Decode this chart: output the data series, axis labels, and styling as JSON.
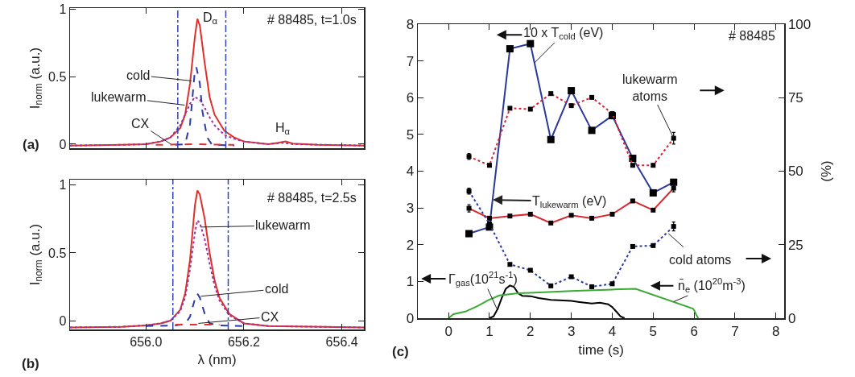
{
  "chart_data": [
    {
      "type": "line",
      "ylabel": "I$_{norm}$ (a.u.)",
      "xlim": [
        655.845,
        656.445
      ],
      "ylim": [
        -0.03,
        1.01
      ],
      "xticks": [
        656,
        656.2,
        656.4
      ],
      "yticks": [
        0,
        0.5,
        1
      ],
      "tick_labels": "y",
      "series": [
        {
          "color": "#e0302a",
          "line_style": "solid",
          "x": [
            655.845,
            655.95,
            656.0,
            656.03,
            656.05,
            656.07,
            656.08,
            656.09,
            656.1,
            656.105,
            656.11,
            656.12,
            656.13,
            656.14,
            656.16,
            656.18,
            656.2,
            656.25,
            656.27,
            656.285,
            656.3,
            656.35,
            656.445
          ],
          "values": [
            -0.01,
            -0.005,
            0.0,
            0.02,
            0.05,
            0.12,
            0.22,
            0.45,
            0.8,
            0.93,
            0.88,
            0.6,
            0.35,
            0.22,
            0.1,
            0.05,
            0.02,
            0.0,
            0.01,
            0.02,
            0.005,
            -0.005,
            -0.01
          ]
        },
        {
          "color": "#2a3aa8",
          "line_style": "dashed",
          "x": [
            656.06,
            656.08,
            656.09,
            656.095,
            656.1,
            656.103,
            656.11,
            656.115,
            656.125,
            656.135,
            656.18
          ],
          "values": [
            -0.005,
            0.0,
            0.15,
            0.35,
            0.55,
            0.57,
            0.45,
            0.25,
            0.05,
            -0.005,
            -0.01
          ]
        },
        {
          "color": "#a030a0",
          "line_style": "dotted",
          "x": [
            655.845,
            655.95,
            656.0,
            656.03,
            656.05,
            656.07,
            656.08,
            656.09,
            656.1,
            656.11,
            656.12,
            656.13,
            656.14,
            656.16,
            656.18,
            656.2,
            656.25,
            656.28,
            656.3,
            656.445
          ],
          "values": [
            -0.01,
            -0.005,
            0.0,
            0.02,
            0.05,
            0.14,
            0.22,
            0.3,
            0.35,
            0.33,
            0.27,
            0.2,
            0.14,
            0.07,
            0.04,
            0.02,
            0.0,
            0.01,
            0.0,
            -0.01
          ]
        },
        {
          "color": "#e0302a",
          "line_style": "dashed",
          "x": [
            656.02,
            656.1,
            656.18
          ],
          "values": [
            -0.005,
            0.0,
            -0.005
          ]
        }
      ],
      "ref_lines": [
        {
          "axis": "x",
          "value": 656.065,
          "color": "#3344bb",
          "line_style": "dashed"
        },
        {
          "axis": "x",
          "value": 656.163,
          "color": "#3344bb",
          "line_style": "dashed"
        }
      ],
      "annotations": [
        "D$_{α}$",
        "# 88485, t=1.0s",
        {
          "text": "cold",
          "x": 656.093,
          "y": 0.47
        },
        {
          "text": "lukewarm",
          "x": 656.079,
          "y": 0.29
        },
        {
          "text": "CX",
          "x": 656.051,
          "y": 0.0
        },
        "H$_{α}$",
        "(a)"
      ]
    },
    {
      "type": "line",
      "xlabel": "λ (nm)",
      "ylabel": "I$_{norm}$ (a.u.)",
      "xlim": [
        655.845,
        656.445
      ],
      "ylim": [
        -0.065,
        1.04
      ],
      "xticks": [
        {
          "value": 656.0,
          "label": "656.0"
        },
        {
          "value": 656.2,
          "label": "656.2"
        },
        {
          "value": 656.4,
          "label": "656.4"
        }
      ],
      "yticks": [
        0,
        0.5,
        1
      ],
      "series": [
        {
          "color": "#e0302a",
          "line_style": "solid",
          "x": [
            655.845,
            655.95,
            656.0,
            656.03,
            656.05,
            656.07,
            656.08,
            656.09,
            656.1,
            656.105,
            656.11,
            656.12,
            656.13,
            656.14,
            656.15,
            656.17,
            656.2,
            656.25,
            656.445
          ],
          "values": [
            -0.05,
            -0.045,
            -0.035,
            -0.02,
            0.0,
            0.08,
            0.2,
            0.45,
            0.85,
            0.96,
            0.93,
            0.75,
            0.5,
            0.3,
            0.17,
            0.05,
            -0.02,
            -0.04,
            -0.05
          ]
        },
        {
          "color": "#a030a0",
          "line_style": "dotted",
          "x": [
            655.845,
            655.95,
            656.0,
            656.03,
            656.05,
            656.07,
            656.08,
            656.09,
            656.1,
            656.105,
            656.11,
            656.12,
            656.13,
            656.14,
            656.15,
            656.17,
            656.2,
            656.25,
            656.445
          ],
          "values": [
            -0.05,
            -0.045,
            -0.035,
            -0.02,
            0.0,
            0.07,
            0.17,
            0.38,
            0.65,
            0.74,
            0.72,
            0.6,
            0.42,
            0.26,
            0.15,
            0.04,
            -0.02,
            -0.04,
            -0.05
          ]
        },
        {
          "color": "#2a3aa8",
          "line_style": "dashed",
          "x": [
            656.0,
            656.06,
            656.08,
            656.09,
            656.1,
            656.105,
            656.11,
            656.12,
            656.13,
            656.15,
            656.2
          ],
          "values": [
            -0.04,
            -0.035,
            -0.025,
            0.03,
            0.16,
            0.2,
            0.17,
            0.05,
            -0.02,
            -0.035,
            -0.04
          ]
        },
        {
          "color": "#e0302a",
          "line_style": "dashed",
          "x": [
            656.06,
            656.15
          ],
          "values": [
            -0.03,
            -0.03
          ]
        }
      ],
      "ref_lines": [
        {
          "axis": "x",
          "value": 656.055,
          "color": "#3344bb",
          "line_style": "dashed"
        },
        {
          "axis": "x",
          "value": 656.168,
          "color": "#3344bb",
          "line_style": "dashed"
        }
      ],
      "annotations": [
        "# 88485, t=2.5s",
        {
          "text": "lukewarm",
          "x": 656.112,
          "y": 0.69
        },
        {
          "text": "cold",
          "x": 656.112,
          "y": 0.18
        },
        {
          "text": "CX",
          "x": 656.107,
          "y": -0.02
        },
        "(b)"
      ]
    },
    {
      "type": "line",
      "xlabel": "time (s)",
      "y2label": "(%)",
      "xlim": [
        -0.75,
        8.2
      ],
      "ylim": [
        0,
        8
      ],
      "y2lim": [
        0,
        100
      ],
      "xticks": [
        0,
        1,
        2,
        3,
        4,
        5,
        6,
        7,
        8
      ],
      "yticks": [
        0,
        1,
        2,
        3,
        4,
        5,
        6,
        7,
        8
      ],
      "y2ticks": [
        0,
        25,
        50,
        75,
        100
      ],
      "marker": "square",
      "x": [
        0.5,
        1.0,
        1.5,
        2.0,
        2.5,
        3.0,
        3.5,
        4.0,
        4.5,
        5.0,
        5.5
      ],
      "series": [
        {
          "color": "#2b3a9a",
          "line_style": "solid",
          "values": [
            2.3,
            2.48,
            7.33,
            7.47,
            4.86,
            6.19,
            5.11,
            5.51,
            4.35,
            3.41,
            3.7
          ]
        },
        {
          "color": "#d8282d",
          "line_style": "solid",
          "values": [
            2.99,
            2.72,
            2.78,
            2.83,
            2.59,
            2.8,
            2.72,
            2.83,
            3.19,
            2.94,
            3.54
          ],
          "errors": [
            0.1,
            null,
            null,
            null,
            null,
            null,
            null,
            null,
            null,
            null,
            0.1
          ]
        },
        {
          "color": "#e02030",
          "line_style": "dotted",
          "axis": "y2",
          "values": [
            55.0,
            52.0,
            71.4,
            71.1,
            76.4,
            72.3,
            75.1,
            69.6,
            52.0,
            52.0,
            61.2
          ],
          "errors": [
            1,
            null,
            null,
            null,
            null,
            null,
            null,
            null,
            null,
            null,
            2
          ]
        },
        {
          "color": "#2b3a9a",
          "line_style": "dotted",
          "axis": "y2",
          "values": [
            43.2,
            32.1,
            18.3,
            16.3,
            11.0,
            14.1,
            10.7,
            11.7,
            24.4,
            24.7,
            31.2
          ],
          "errors": [
            1,
            null,
            null,
            null,
            null,
            null,
            null,
            null,
            null,
            null,
            1.5
          ]
        },
        {
          "color": "#000000",
          "line_style": "solid",
          "marker": "none",
          "x": [
            1.0,
            1.1,
            1.2,
            1.3,
            1.4,
            1.5,
            1.6,
            1.7,
            1.8,
            2.0,
            2.2,
            2.5,
            3.0,
            3.2,
            3.5,
            3.7,
            3.9,
            4.0,
            4.1,
            4.2,
            4.3
          ],
          "values": [
            0.0,
            0.05,
            0.25,
            0.55,
            0.8,
            0.89,
            0.85,
            0.68,
            0.61,
            0.6,
            0.55,
            0.5,
            0.47,
            0.44,
            0.4,
            0.42,
            0.38,
            0.3,
            0.18,
            0.05,
            0.0
          ]
        },
        {
          "color": "#3aaa35",
          "line_style": "solid",
          "marker": "none",
          "x": [
            0.0,
            0.12,
            0.41,
            0.71,
            0.97,
            1.24,
            1.7,
            2.0,
            3.0,
            4.0,
            4.57,
            5.97,
            6.0,
            6.05,
            6.1
          ],
          "values": [
            0.0,
            0.11,
            0.18,
            0.33,
            0.49,
            0.62,
            0.68,
            0.69,
            0.74,
            0.78,
            0.8,
            0.26,
            0.22,
            0.1,
            0.0
          ]
        }
      ],
      "annotations": [
        {
          "text": "10 x T$_{cold}$ (eV)",
          "x": 2.1,
          "y": 6.95
        },
        {
          "text": "T$_{lukewarm}$ (eV)",
          "x": 1.08,
          "y": 3.22
        },
        {
          "text": "lukewarm\natoms",
          "x": 5.5,
          "y": 4.9
        },
        "cold atoms",
        {
          "text": "Γ$_{gas}$(10$^{21}$s$^{-1}$)",
          "x": 1.18,
          "y": 0.26
        },
        {
          "text": "n̄$_{e}$ (10$^{20}$m$^{-3}$)",
          "x": 5.5,
          "y": 0.45
        },
        "# 88485",
        "(c)"
      ]
    }
  ]
}
